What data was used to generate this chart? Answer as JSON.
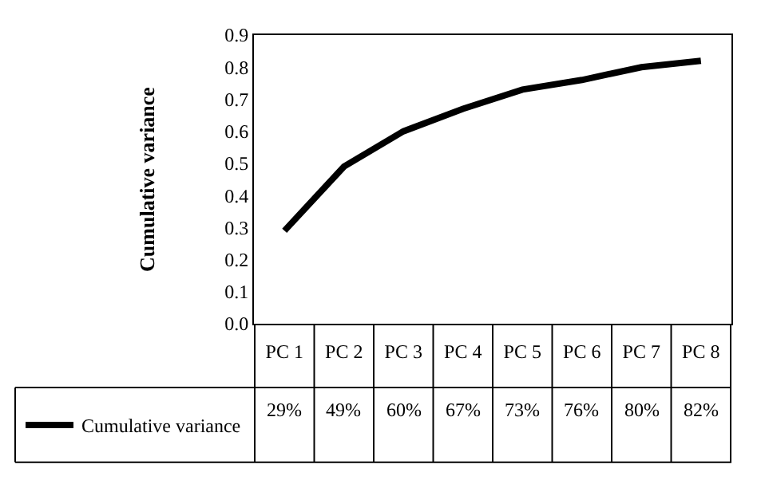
{
  "chart_data": {
    "type": "line",
    "ylabel": "Cumulative variance",
    "categories": [
      "PC 1",
      "PC 2",
      "PC 3",
      "PC 4",
      "PC 5",
      "PC 6",
      "PC 7",
      "PC 8"
    ],
    "series": [
      {
        "name": "Cumulative variance",
        "color": "#000000",
        "values": [
          0.29,
          0.49,
          0.6,
          0.67,
          0.73,
          0.76,
          0.8,
          0.82
        ],
        "value_labels": [
          "29%",
          "49%",
          "60%",
          "67%",
          "73%",
          "76%",
          "80%",
          "82%"
        ]
      }
    ],
    "ylim": [
      0,
      0.9
    ],
    "yticks": [
      {
        "value": 0,
        "label": "0.0"
      },
      0.1,
      0.2,
      0.3,
      0.4,
      0.5,
      0.6,
      0.7,
      0.8,
      0.9
    ],
    "legend": "bottom"
  }
}
